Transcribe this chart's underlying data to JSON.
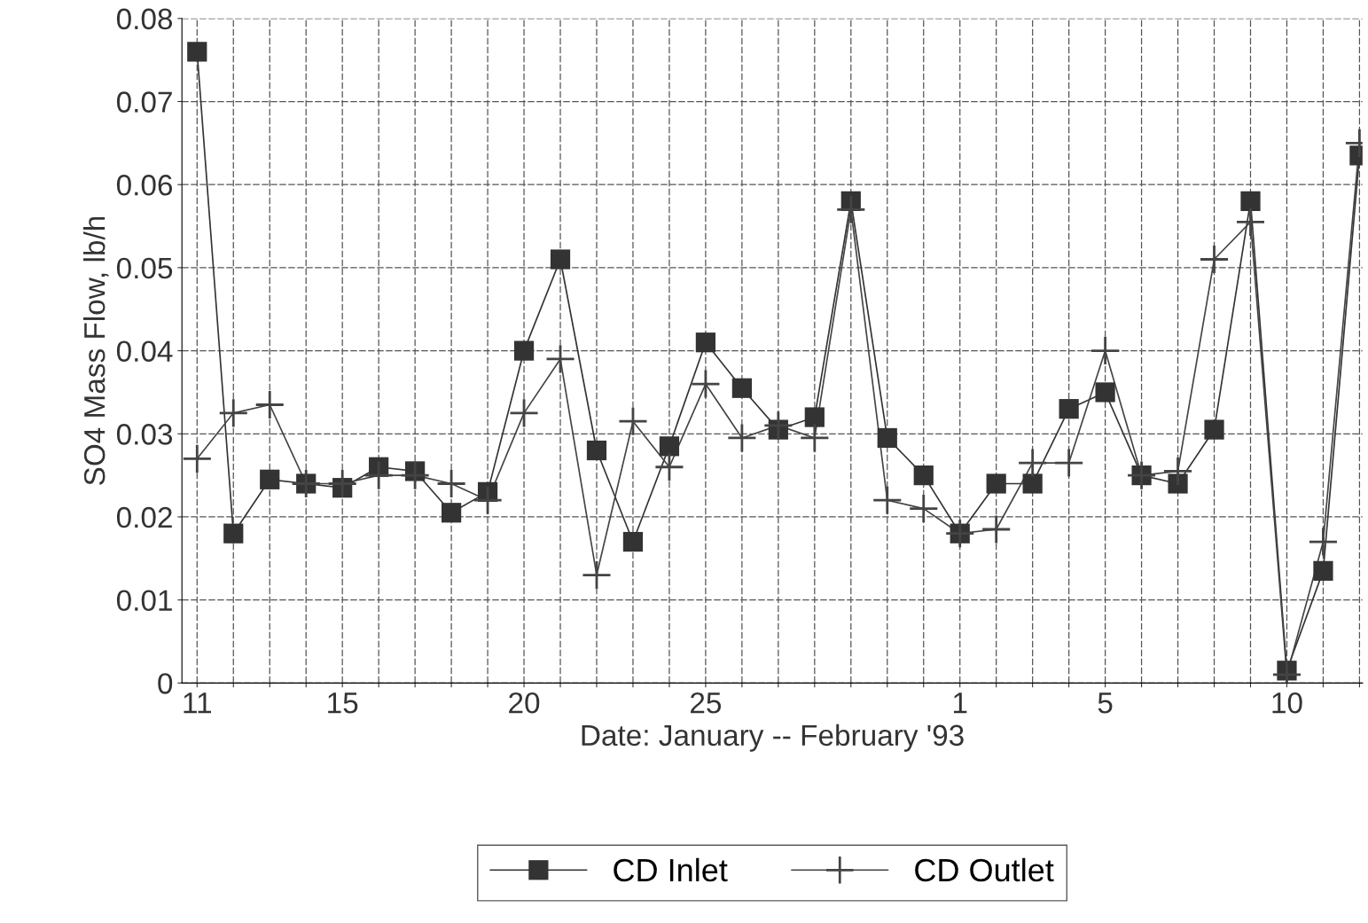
{
  "chart_data": {
    "type": "line",
    "xlabel": "Date: January -- February '93",
    "ylabel": "SO4 Mass Flow, lb/h",
    "x": [
      "1993-01-11",
      "1993-01-12",
      "1993-01-13",
      "1993-01-14",
      "1993-01-15",
      "1993-01-16",
      "1993-01-17",
      "1993-01-18",
      "1993-01-19",
      "1993-01-20",
      "1993-01-21",
      "1993-01-22",
      "1993-01-23",
      "1993-01-24",
      "1993-01-25",
      "1993-01-26",
      "1993-01-27",
      "1993-01-28",
      "1993-01-29",
      "1993-01-30",
      "1993-01-31",
      "1993-02-01",
      "1993-02-02",
      "1993-02-03",
      "1993-02-04",
      "1993-02-05",
      "1993-02-06",
      "1993-02-07",
      "1993-02-08",
      "1993-02-09",
      "1993-02-10",
      "1993-02-11",
      "1993-02-12"
    ],
    "series": [
      {
        "name": "CD Inlet",
        "color": "#333333",
        "marker": "square",
        "values": [
          0.076,
          0.018,
          0.0245,
          0.024,
          0.0235,
          0.026,
          0.0255,
          0.0205,
          0.023,
          0.04,
          0.051,
          0.028,
          0.017,
          0.0285,
          0.041,
          0.0355,
          0.0305,
          0.032,
          0.058,
          0.0295,
          0.025,
          0.018,
          0.024,
          0.024,
          0.033,
          0.035,
          0.025,
          0.024,
          0.0305,
          0.058,
          0.0015,
          0.0135,
          0.0635
        ]
      },
      {
        "name": "CD Outlet",
        "color": "#444444",
        "marker": "cross",
        "values": [
          0.027,
          0.0325,
          0.0335,
          0.024,
          0.024,
          0.025,
          0.025,
          0.024,
          0.022,
          0.0325,
          0.039,
          0.013,
          0.0315,
          0.026,
          0.036,
          0.0295,
          0.031,
          0.0295,
          0.057,
          0.022,
          0.021,
          0.018,
          0.0185,
          0.0265,
          0.0265,
          0.04,
          0.025,
          0.0255,
          0.051,
          0.0555,
          0.001,
          0.017,
          0.065
        ]
      }
    ],
    "xlim": [
      "1993-01-10T14:00",
      "1993-02-12T02:00"
    ],
    "xticks": [
      {
        "value": "1993-01-11",
        "label": "11"
      },
      {
        "value": "1993-01-12",
        "label": null
      },
      {
        "value": "1993-01-13",
        "label": null
      },
      {
        "value": "1993-01-14",
        "label": null
      },
      {
        "value": "1993-01-15",
        "label": "15"
      },
      {
        "value": "1993-01-16",
        "label": null
      },
      {
        "value": "1993-01-17",
        "label": null
      },
      {
        "value": "1993-01-18",
        "label": null
      },
      {
        "value": "1993-01-19",
        "label": null
      },
      {
        "value": "1993-01-20",
        "label": "20"
      },
      {
        "value": "1993-01-21",
        "label": null
      },
      {
        "value": "1993-01-22",
        "label": null
      },
      {
        "value": "1993-01-23",
        "label": null
      },
      {
        "value": "1993-01-24",
        "label": null
      },
      {
        "value": "1993-01-25",
        "label": "25"
      },
      {
        "value": "1993-01-26",
        "label": null
      },
      {
        "value": "1993-01-27",
        "label": null
      },
      {
        "value": "1993-01-28",
        "label": null
      },
      {
        "value": "1993-01-29",
        "label": null
      },
      {
        "value": "1993-01-30",
        "label": null
      },
      {
        "value": "1993-01-31",
        "label": null
      },
      {
        "value": "1993-02-01",
        "label": "1"
      },
      {
        "value": "1993-02-02",
        "label": null
      },
      {
        "value": "1993-02-03",
        "label": null
      },
      {
        "value": "1993-02-04",
        "label": null
      },
      {
        "value": "1993-02-05",
        "label": "5"
      },
      {
        "value": "1993-02-06",
        "label": null
      },
      {
        "value": "1993-02-07",
        "label": null
      },
      {
        "value": "1993-02-08",
        "label": null
      },
      {
        "value": "1993-02-09",
        "label": null
      },
      {
        "value": "1993-02-10",
        "label": "10"
      },
      {
        "value": "1993-02-11",
        "label": null
      },
      {
        "value": "1993-02-12",
        "label": null
      }
    ],
    "ylim": [
      0,
      0.08
    ],
    "yticks": [
      0,
      0.01,
      0.02,
      0.03,
      0.04,
      0.05,
      0.06,
      0.07,
      0.08
    ],
    "grid": true,
    "legend": "bottom",
    "line_style": "solid"
  }
}
